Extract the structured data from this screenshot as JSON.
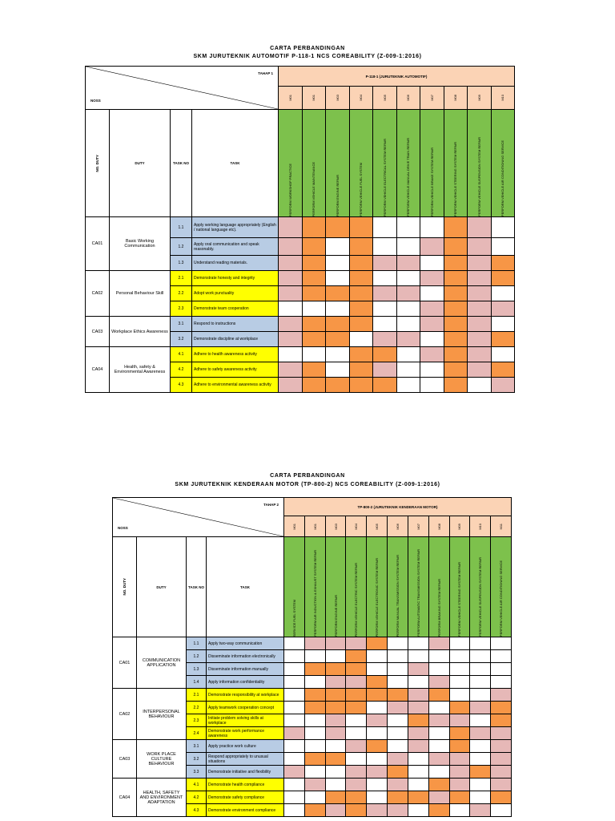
{
  "sections": [
    {
      "title1": "CARTA PERBANDINGAN",
      "title2": "SKM JURUTEKNIK AUTOMOTIF P-118-1 NCS COREABILITY (Z-009-1:2016)",
      "tahap_label": "TAHAP 1",
      "noss_label": "NOSS",
      "category": "P-118-1 (JURUTEKNIK AUTOMOTIF)",
      "col_no_duty": "NO. DUTY",
      "col_duty": "DUTY",
      "col_task_no": "TASK NO",
      "col_task": "TASK",
      "module_codes": [
        "M01",
        "M01",
        "M03",
        "M04",
        "M05",
        "M06",
        "M07",
        "M08",
        "M09",
        "M10"
      ],
      "modules": [
        "PERFORM WORKSHOP PRACTICE",
        "PERFORM VEHICLE MAINTENANCE",
        "PERFORM ENGINE REPAIR",
        "PERFORM VEHICLE FUEL SYSTEM",
        "PERFORM VEHICLE ELECTRICAL SYSTEM REPAIR",
        "PERFORM VEHICLE MANUAL DRIVE TRAIN REPAIR",
        "PERFORM VEHICLE BRAKE SYSTEM REPAIR",
        "PERFORM VEHICLE STEERING SYSTEM REPAIR",
        "PERFORM VEHICLE SUSPENSION SYSTEM REPAIR",
        "PERFORM VEHICLE AIR CONDITIONING SERVICE"
      ],
      "duties": [
        {
          "no": "CA01",
          "name": "Basic Working Communication",
          "color": "blue",
          "tasks": [
            {
              "no": "1.1",
              "name": "Apply working language appropriately (English / national language etc).",
              "cells": "pooowwwopw"
            },
            {
              "no": "1.2",
              "name": "Apply oral communication and speak reasonably.",
              "cells": "powowwpopw"
            },
            {
              "no": "1.3",
              "name": "Understand reading materials.",
              "cells": "powoppwopo"
            }
          ]
        },
        {
          "no": "CA02",
          "name": "Personal Behaviour Skill",
          "color": "yel",
          "tasks": [
            {
              "no": "2.1",
              "name": "Demonstrate honesty and integrity",
              "cells": "powowwpopo"
            },
            {
              "no": "2.2",
              "name": "Adopt work punctuality",
              "cells": "poooppwopw"
            },
            {
              "no": "2.3",
              "name": "Demonstrate team cooperation",
              "cells": "wwwowwpopp"
            }
          ]
        },
        {
          "no": "CA03",
          "name": "Workplace Ethics Awareness",
          "color": "blue",
          "tasks": [
            {
              "no": "3.1",
              "name": "Respond to instructions",
              "cells": "pooowwpopw"
            },
            {
              "no": "3.2",
              "name": "Demonstrate discipline at workplace",
              "cells": "poowppwopo"
            }
          ]
        },
        {
          "no": "CA04",
          "name": "Health, safety & Environmental Awareness",
          "color": "yel",
          "tasks": [
            {
              "no": "4.1",
              "name": "Adhere to health awareness activity",
              "cells": "wwwoowpopw"
            },
            {
              "no": "4.2",
              "name": "Adhere to safety awareness activity",
              "cells": "powopwwopo"
            },
            {
              "no": "4.3",
              "name": "Adhere to environmental awareness activity",
              "cells": "poooowwowp"
            }
          ]
        }
      ]
    },
    {
      "title1": "CARTA PERBANDINGAN",
      "title2": "SKM JURUTEKNIK KENDERAAN MOTOR (TP-800-2) NCS COREABILITY (Z-009-1:2016)",
      "tahap_label": "TAHAP 2",
      "noss_label": "NOSS",
      "category": "TP-800-2 (JURUTEKNIK KENDERAAN MOTOR)",
      "col_no_duty": "NO. DUTY",
      "col_duty": "DUTY",
      "col_task_no": "TASK NO",
      "col_task": "TASK",
      "module_codes": [
        "M01",
        "M01",
        "M03",
        "M04",
        "M05",
        "M06",
        "M07",
        "M08",
        "M09",
        "M10",
        "M11"
      ],
      "modules": [
        "SERVICE FUEL SYSTEM",
        "PERFORM AIR INDUCTION & EXHAUST SYSTEM REPAIR",
        "PERFORM ENGINE REPAIR",
        "PERFORM VEHICLE ELECTRIC SYSTEM REPAIR",
        "PERFORM VEHICLE ELECTRONIC SYSTEM REPAIR",
        "PERFORM MANUAL TRANSMISSION SYSTEM REPAIR",
        "PERFORM AUTOMATIC TRANSMISSION SYSTEM REPAIR",
        "PERFORM BRAKING SYSTEM REPAIR",
        "PERFORM VEHICLE STEERING SYSTEM REPAIR",
        "PERFORM VEHICLE SUSPENSION SYSTEM REPAIR",
        "PERFORM VEHICLE AIR CONDITIONING SERVICE"
      ],
      "duties": [
        {
          "no": "CA01",
          "name": "COMMUNICATION APPLICATION",
          "color": "blue",
          "tasks": [
            {
              "no": "1.1",
              "name": "Apply two-way communication",
              "cells": "wpppowwpwww"
            },
            {
              "no": "1.2",
              "name": "Disseminate information electronically",
              "cells": "wwwowwwwwww"
            },
            {
              "no": "1.3",
              "name": "Disseminate information manually",
              "cells": "wooowwpwwww"
            },
            {
              "no": "1.4",
              "name": "Apply information confidentiality",
              "cells": "wwppowwpwww"
            }
          ]
        },
        {
          "no": "CA02",
          "name": "INTERPERSONAL BEHAVIOUR",
          "color": "yel",
          "tasks": [
            {
              "no": "2.1",
              "name": "Demonstrate responsibility at workplace",
              "cells": "wooooopowwp"
            },
            {
              "no": "2.2",
              "name": "Apply teamwork cooperation concept",
              "cells": "wooowppwopo"
            },
            {
              "no": "2.3",
              "name": "Initiate problem solving skills at workplace",
              "cells": "wwpwpwoppwo"
            },
            {
              "no": "2.4",
              "name": "Demonstrate work performance awareness",
              "cells": "pwpwwwpwopp"
            }
          ]
        },
        {
          "no": "CA03",
          "name": "WORK PLACE CULTURE BEHAVIOUR",
          "color": "blue",
          "tasks": [
            {
              "no": "3.1",
              "name": "Apply practice work culture",
              "cells": "wwwpowpwowp"
            },
            {
              "no": "3.2",
              "name": "Respond appropriately to unusual situations",
              "cells": "woowwpwppwp"
            },
            {
              "no": "3.3",
              "name": "Demonstrate initiative and flexibility",
              "cells": "pwwppowwpop"
            }
          ]
        },
        {
          "no": "CA04",
          "name": "HEALTH, SAFETY AND ENVIRONMENT ADAPTATION",
          "color": "yel",
          "tasks": [
            {
              "no": "4.1",
              "name": "Demonstrate health compliance",
              "cells": "wpwpwpwopwp"
            },
            {
              "no": "4.2",
              "name": "Demonstrate safety compliance",
              "cells": "wwoowoopowo"
            },
            {
              "no": "4.3",
              "name": "Demonstrate environment compliance",
              "cells": "wopoppwowpw"
            }
          ]
        }
      ]
    }
  ]
}
